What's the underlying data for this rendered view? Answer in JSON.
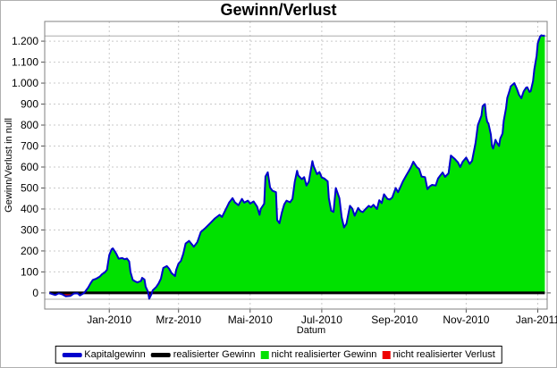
{
  "window": {
    "background": "#ffffff",
    "frame_color": "#b0b0b0"
  },
  "chart_data": {
    "type": "area",
    "title": "Gewinn/Verlust",
    "xlabel": "Datum",
    "ylabel": "Gewinn/Verlust in null",
    "grid": true,
    "plot_bg": "#ffffff",
    "plot_border_color": "#808080",
    "gridline_color": "#c9c9c9",
    "reference_line_color": "#ababab",
    "reference_lines": [
      1225,
      -30
    ],
    "ylim": [
      -77,
      1294
    ],
    "x_range_days": [
      -55,
      373
    ],
    "y_ticks": {
      "step": 100,
      "labels": [
        "0",
        "100",
        "200",
        "300",
        "400",
        "500",
        "600",
        "700",
        "800",
        "900",
        "1.000",
        "1.100",
        "1.200"
      ]
    },
    "x_ticks": {
      "days": [
        0,
        59,
        120,
        181,
        243,
        304,
        365
      ],
      "labels": [
        "Jan-2010",
        "Mrz-2010",
        "Mai-2010",
        "Jul-2010",
        "Sep-2010",
        "Nov-2010",
        "Jan-2011"
      ]
    },
    "time_origin": "2010-01-01",
    "data_start_date": "2009-11-11",
    "data_end_date": "2011-01-07",
    "series": [
      {
        "name": "Kapitalgewinn",
        "color": "#0000cc",
        "type": "line",
        "points": [
          [
            -51,
            0
          ],
          [
            -49,
            -5
          ],
          [
            -46,
            -10
          ],
          [
            -43,
            -2
          ],
          [
            -40,
            -7
          ],
          [
            -37,
            -16
          ],
          [
            -33,
            -14
          ],
          [
            -30,
            -3
          ],
          [
            -27,
            -2
          ],
          [
            -25,
            -12
          ],
          [
            -23,
            -6
          ],
          [
            -21,
            2
          ],
          [
            -18,
            25
          ],
          [
            -16,
            45
          ],
          [
            -14,
            62
          ],
          [
            -11,
            68
          ],
          [
            -8,
            78
          ],
          [
            -6,
            90
          ],
          [
            -4,
            97
          ],
          [
            -2,
            110
          ],
          [
            0,
            180
          ],
          [
            2,
            208
          ],
          [
            3,
            212
          ],
          [
            5,
            196
          ],
          [
            6,
            186
          ],
          [
            8,
            163
          ],
          [
            11,
            166
          ],
          [
            13,
            160
          ],
          [
            15,
            164
          ],
          [
            17,
            150
          ],
          [
            18,
            100
          ],
          [
            20,
            62
          ],
          [
            22,
            55
          ],
          [
            24,
            50
          ],
          [
            27,
            57
          ],
          [
            28,
            72
          ],
          [
            30,
            64
          ],
          [
            31,
            30
          ],
          [
            33,
            5
          ],
          [
            34,
            -28
          ],
          [
            36,
            -5
          ],
          [
            37,
            12
          ],
          [
            40,
            28
          ],
          [
            42,
            45
          ],
          [
            44,
            68
          ],
          [
            46,
            119
          ],
          [
            49,
            128
          ],
          [
            51,
            115
          ],
          [
            53,
            95
          ],
          [
            56,
            80
          ],
          [
            57,
            110
          ],
          [
            59,
            140
          ],
          [
            61,
            152
          ],
          [
            63,
            185
          ],
          [
            65,
            235
          ],
          [
            68,
            248
          ],
          [
            72,
            220
          ],
          [
            75,
            242
          ],
          [
            78,
            290
          ],
          [
            82,
            310
          ],
          [
            86,
            332
          ],
          [
            90,
            355
          ],
          [
            94,
            372
          ],
          [
            96,
            362
          ],
          [
            99,
            395
          ],
          [
            102,
            430
          ],
          [
            105,
            452
          ],
          [
            107,
            432
          ],
          [
            110,
            418
          ],
          [
            113,
            448
          ],
          [
            115,
            430
          ],
          [
            118,
            440
          ],
          [
            120,
            426
          ],
          [
            123,
            436
          ],
          [
            126,
            410
          ],
          [
            128,
            372
          ],
          [
            129,
            400
          ],
          [
            132,
            425
          ],
          [
            133,
            555
          ],
          [
            135,
            575
          ],
          [
            137,
            502
          ],
          [
            139,
            487
          ],
          [
            142,
            480
          ],
          [
            143,
            347
          ],
          [
            145,
            332
          ],
          [
            147,
            382
          ],
          [
            149,
            422
          ],
          [
            151,
            440
          ],
          [
            154,
            432
          ],
          [
            156,
            448
          ],
          [
            158,
            530
          ],
          [
            160,
            582
          ],
          [
            161,
            560
          ],
          [
            164,
            542
          ],
          [
            166,
            552
          ],
          [
            168,
            512
          ],
          [
            170,
            530
          ],
          [
            173,
            628
          ],
          [
            174,
            605
          ],
          [
            177,
            566
          ],
          [
            179,
            576
          ],
          [
            181,
            550
          ],
          [
            183,
            546
          ],
          [
            186,
            532
          ],
          [
            187,
            452
          ],
          [
            189,
            392
          ],
          [
            191,
            386
          ],
          [
            193,
            500
          ],
          [
            196,
            452
          ],
          [
            198,
            360
          ],
          [
            200,
            312
          ],
          [
            202,
            330
          ],
          [
            205,
            415
          ],
          [
            207,
            402
          ],
          [
            209,
            368
          ],
          [
            212,
            405
          ],
          [
            214,
            390
          ],
          [
            216,
            385
          ],
          [
            218,
            398
          ],
          [
            221,
            415
          ],
          [
            223,
            408
          ],
          [
            225,
            420
          ],
          [
            228,
            400
          ],
          [
            230,
            442
          ],
          [
            232,
            428
          ],
          [
            234,
            470
          ],
          [
            237,
            448
          ],
          [
            239,
            445
          ],
          [
            241,
            455
          ],
          [
            244,
            500
          ],
          [
            246,
            480
          ],
          [
            248,
            505
          ],
          [
            250,
            530
          ],
          [
            253,
            560
          ],
          [
            255,
            580
          ],
          [
            257,
            600
          ],
          [
            259,
            625
          ],
          [
            262,
            600
          ],
          [
            264,
            590
          ],
          [
            266,
            555
          ],
          [
            269,
            552
          ],
          [
            271,
            495
          ],
          [
            273,
            508
          ],
          [
            275,
            515
          ],
          [
            278,
            512
          ],
          [
            280,
            545
          ],
          [
            282,
            560
          ],
          [
            284,
            574
          ],
          [
            286,
            553
          ],
          [
            289,
            570
          ],
          [
            291,
            655
          ],
          [
            294,
            640
          ],
          [
            297,
            622
          ],
          [
            299,
            600
          ],
          [
            301,
            625
          ],
          [
            304,
            645
          ],
          [
            307,
            615
          ],
          [
            309,
            630
          ],
          [
            312,
            715
          ],
          [
            314,
            800
          ],
          [
            317,
            845
          ],
          [
            318,
            890
          ],
          [
            320,
            900
          ],
          [
            321,
            843
          ],
          [
            322,
            815
          ],
          [
            323,
            808
          ],
          [
            325,
            755
          ],
          [
            326,
            700
          ],
          [
            327,
            688
          ],
          [
            329,
            730
          ],
          [
            330,
            718
          ],
          [
            332,
            700
          ],
          [
            333,
            735
          ],
          [
            335,
            760
          ],
          [
            336,
            820
          ],
          [
            338,
            880
          ],
          [
            339,
            930
          ],
          [
            341,
            965
          ],
          [
            342,
            985
          ],
          [
            345,
            1000
          ],
          [
            347,
            975
          ],
          [
            349,
            945
          ],
          [
            351,
            928
          ],
          [
            353,
            960
          ],
          [
            355,
            978
          ],
          [
            356,
            980
          ],
          [
            358,
            958
          ],
          [
            359,
            962
          ],
          [
            361,
            1010
          ],
          [
            362,
            1065
          ],
          [
            364,
            1130
          ],
          [
            365,
            1190
          ],
          [
            367,
            1222
          ],
          [
            368,
            1228
          ],
          [
            370,
            1225
          ],
          [
            371,
            1228
          ]
        ]
      },
      {
        "name": "realisierter Gewinn",
        "color": "#000000",
        "type": "line-constant",
        "value": 0
      },
      {
        "name": "nicht realisierter Gewinn",
        "color": "#00e100",
        "type": "area-positive"
      },
      {
        "name": "nicht realisierter Verlust",
        "color": "#ee0000",
        "type": "area-negative"
      }
    ],
    "legend": {
      "position": "bottom",
      "entries": [
        {
          "label": "Kapitalgewinn",
          "swatch": "line",
          "color": "#0000cc"
        },
        {
          "label": "realisierter Gewinn",
          "swatch": "line",
          "color": "#000000"
        },
        {
          "label": "nicht realisierter Gewinn",
          "swatch": "square",
          "color": "#00e100"
        },
        {
          "label": "nicht realisierter Verlust",
          "swatch": "square",
          "color": "#ee0000"
        }
      ]
    }
  }
}
